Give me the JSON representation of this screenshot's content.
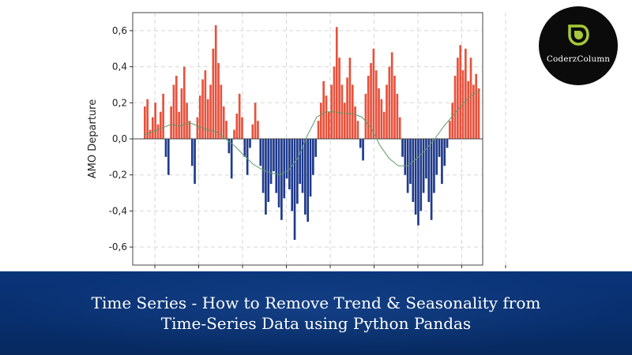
{
  "chart_data": {
    "type": "bar",
    "title": "",
    "xlabel": "",
    "ylabel": "AMO Departure",
    "ylim": [
      -0.7,
      0.7
    ],
    "yticks": [
      "0,6",
      "0,4",
      "0,2",
      "0,0",
      "-0,2",
      "-0,4",
      "-0,6"
    ],
    "ytick_values": [
      0.6,
      0.4,
      0.2,
      0.0,
      -0.2,
      -0.4,
      -0.6
    ],
    "grid": true,
    "zero_line": true,
    "x_tick_count": 9,
    "series": [
      {
        "values": [
          0.18,
          0.22,
          0.05,
          0.12,
          0.2,
          0.08,
          0.15,
          0.25,
          -0.1,
          -0.2,
          0.18,
          0.3,
          0.35,
          0.15,
          0.28,
          0.4,
          0.2,
          0.1,
          -0.15,
          -0.25,
          0.12,
          0.24,
          0.33,
          0.38,
          0.22,
          0.3,
          0.5,
          0.63,
          0.42,
          0.3,
          0.18,
          0.1,
          -0.08,
          -0.22,
          0.05,
          0.14,
          0.25,
          0.12,
          -0.1,
          -0.2,
          -0.05,
          0.08,
          0.2,
          0.1,
          -0.15,
          -0.3,
          -0.42,
          -0.35,
          -0.25,
          -0.18,
          -0.3,
          -0.38,
          -0.45,
          -0.33,
          -0.22,
          -0.28,
          -0.4,
          -0.56,
          -0.36,
          -0.25,
          -0.3,
          -0.42,
          -0.46,
          -0.32,
          -0.2,
          -0.1,
          0.1,
          0.2,
          0.32,
          0.24,
          0.15,
          0.3,
          0.4,
          0.62,
          0.45,
          0.3,
          0.2,
          0.34,
          0.45,
          0.3,
          0.18,
          0.1,
          -0.05,
          -0.12,
          0.25,
          0.35,
          0.42,
          0.5,
          0.38,
          0.28,
          0.22,
          0.15,
          0.3,
          0.4,
          0.48,
          0.35,
          0.25,
          0.12,
          -0.1,
          -0.2,
          -0.3,
          -0.25,
          -0.35,
          -0.42,
          -0.48,
          -0.4,
          -0.3,
          -0.22,
          -0.35,
          -0.45,
          -0.3,
          -0.2,
          -0.1,
          -0.25,
          -0.15,
          -0.05,
          0.1,
          0.2,
          0.35,
          0.45,
          0.52,
          0.38,
          0.5,
          0.32,
          0.45,
          0.3,
          0.36,
          0.28
        ],
        "trend": [
          0.02,
          0.04,
          0.06,
          0.08,
          0.07,
          0.09,
          0.07,
          0.05,
          0.04,
          0.0,
          -0.04,
          -0.09,
          -0.14,
          -0.17,
          -0.19,
          -0.2,
          -0.17,
          -0.1,
          0.02,
          0.12,
          0.15,
          0.15,
          0.14,
          0.14,
          0.12,
          0.06,
          -0.04,
          -0.11,
          -0.15,
          -0.15,
          -0.11,
          -0.06,
          0.0,
          0.07,
          0.13,
          0.19,
          0.24,
          0.27
        ]
      }
    ],
    "colors": {
      "positive": "#e8513c",
      "negative": "#1f3a8c",
      "trend": "#5e9a6a"
    }
  },
  "logo": {
    "text": "CoderzColumn",
    "bg": "#0b0b0b",
    "mark_color": "#a6c83a",
    "icon": "leaf-drop-icon"
  },
  "banner": {
    "line1": "Time Series - How to Remove Trend & Seasonality from",
    "line2": "Time-Series Data using Python Pandas",
    "color": "#0a3579"
  }
}
